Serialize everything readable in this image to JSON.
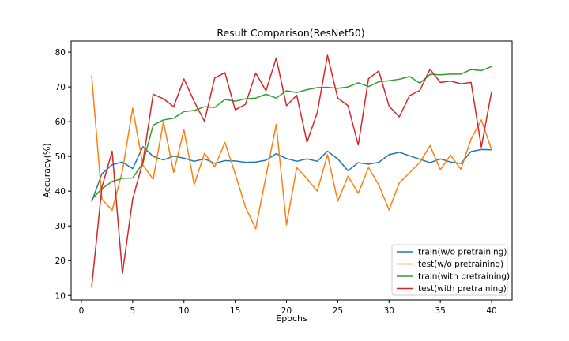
{
  "chart_data": {
    "type": "line",
    "title": "Result Comparison(ResNet50)",
    "xlabel": "Epochs",
    "ylabel": "Accuracy(%)",
    "xlim": [
      -1.0,
      42.0
    ],
    "ylim": [
      8.7,
      83.2
    ],
    "xticks": [
      0,
      5,
      10,
      15,
      20,
      25,
      30,
      35,
      40
    ],
    "yticks": [
      10,
      20,
      30,
      40,
      50,
      60,
      70,
      80
    ],
    "grid": false,
    "legend_position": "lower-right",
    "x": [
      1,
      2,
      3,
      4,
      5,
      6,
      7,
      8,
      9,
      10,
      11,
      12,
      13,
      14,
      15,
      16,
      17,
      18,
      19,
      20,
      21,
      22,
      23,
      24,
      25,
      26,
      27,
      28,
      29,
      30,
      31,
      32,
      33,
      34,
      35,
      36,
      37,
      38,
      39,
      40
    ],
    "series": [
      {
        "name": "train(w/o pretraining)",
        "color": "#1f77b4",
        "values": [
          36.9,
          45.0,
          47.6,
          48.4,
          46.5,
          52.8,
          50.0,
          49.0,
          50.1,
          49.5,
          48.6,
          49.3,
          48.0,
          48.8,
          48.7,
          48.3,
          48.4,
          48.9,
          50.8,
          49.4,
          48.6,
          49.3,
          48.6,
          51.5,
          49.3,
          45.9,
          48.2,
          47.8,
          48.3,
          50.5,
          51.2,
          50.2,
          49.2,
          48.2,
          49.3,
          48.4,
          48.0,
          51.4,
          52.0,
          51.9
        ]
      },
      {
        "name": "test(w/o pretraining)",
        "color": "#ff7f0e",
        "values": [
          73.3,
          37.7,
          34.5,
          45.8,
          63.9,
          47.5,
          43.4,
          60.0,
          45.4,
          57.7,
          41.9,
          50.9,
          47.0,
          54.0,
          45.0,
          35.4,
          29.2,
          44.3,
          59.2,
          30.3,
          46.8,
          43.6,
          40.0,
          50.5,
          37.1,
          44.3,
          39.4,
          46.8,
          41.8,
          34.6,
          42.4,
          45.3,
          48.3,
          53.1,
          46.2,
          50.4,
          46.3,
          55.0,
          60.5,
          51.9
        ]
      },
      {
        "name": "train(with pretraining)",
        "color": "#2ca02c",
        "values": [
          37.6,
          40.7,
          42.8,
          43.7,
          43.8,
          48.1,
          59.0,
          60.5,
          61.0,
          62.9,
          63.2,
          64.3,
          64.1,
          66.4,
          65.9,
          66.6,
          66.8,
          67.9,
          66.8,
          68.9,
          68.4,
          69.2,
          69.8,
          69.9,
          69.6,
          70.0,
          71.2,
          70.1,
          71.5,
          71.8,
          72.2,
          73.0,
          71.1,
          73.6,
          73.5,
          73.7,
          73.7,
          75.0,
          74.7,
          75.9
        ]
      },
      {
        "name": "test(with pretraining)",
        "color": "#d62728",
        "values": [
          12.3,
          41.1,
          51.5,
          16.3,
          37.7,
          48.5,
          67.9,
          66.6,
          64.3,
          72.3,
          65.8,
          60.1,
          72.6,
          74.1,
          63.4,
          65.0,
          74.0,
          68.9,
          78.3,
          64.6,
          67.6,
          54.1,
          62.6,
          79.1,
          66.8,
          64.6,
          53.3,
          72.4,
          74.6,
          64.5,
          61.4,
          67.5,
          69.0,
          75.1,
          71.3,
          71.7,
          70.9,
          71.3,
          52.7,
          68.7
        ]
      }
    ]
  }
}
